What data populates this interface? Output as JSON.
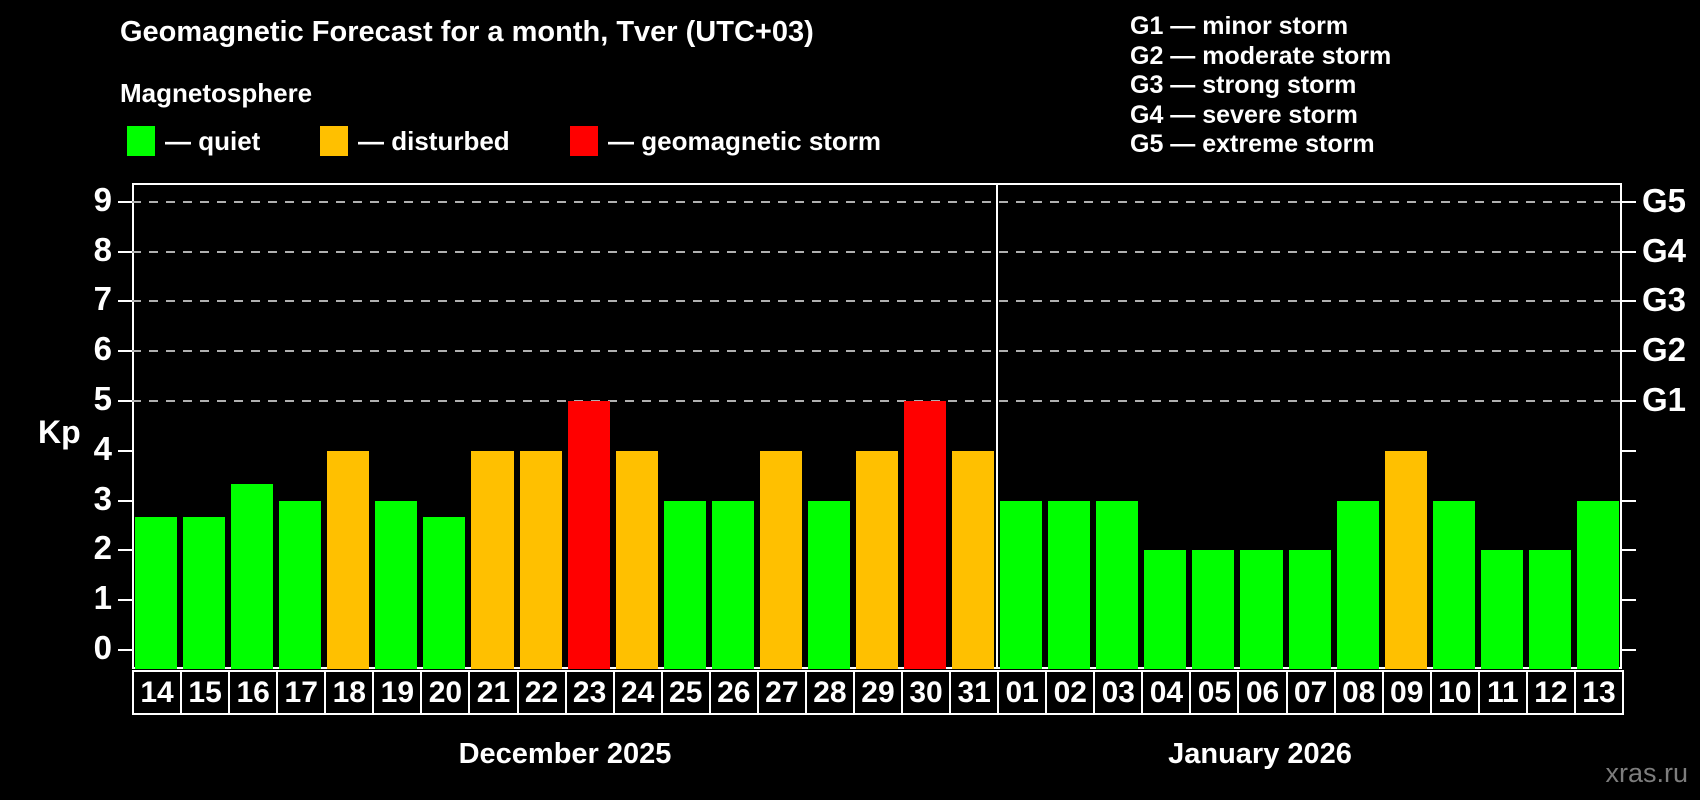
{
  "title": "Geomagnetic Forecast for a month, Tver (UTC+03)",
  "subtitle": "Magnetosphere",
  "legend": {
    "quiet_label": "— quiet",
    "disturbed_label": "— disturbed",
    "storm_label": "— geomagnetic storm"
  },
  "g_scale_legend": [
    "G1 — minor storm",
    "G2 — moderate storm",
    "G3 — strong storm",
    "G4 — severe storm",
    "G5 — extreme storm"
  ],
  "watermark": "xras.ru",
  "colors": {
    "background": "#000000",
    "quiet": "#00ff00",
    "disturbed": "#ffc000",
    "storm": "#ff0000",
    "axis": "#ffffff",
    "grid": "#b0b0b0",
    "watermark_color": "#7d7d7d"
  },
  "chart_data": {
    "type": "bar",
    "title": "Geomagnetic Forecast for a month, Tver (UTC+03)",
    "xlabel": "",
    "ylabel": "Kp",
    "ylim": [
      0,
      9
    ],
    "grid": "horizontal dashed lines at Kp 5,6,7,8,9",
    "legend_position": "top",
    "y_ticks": [
      0,
      1,
      2,
      3,
      4,
      5,
      6,
      7,
      8,
      9
    ],
    "g_labels": {
      "5": "G1",
      "6": "G2",
      "7": "G3",
      "8": "G4",
      "9": "G5"
    },
    "categories": [
      "14",
      "15",
      "16",
      "17",
      "18",
      "19",
      "20",
      "21",
      "22",
      "23",
      "24",
      "25",
      "26",
      "27",
      "28",
      "29",
      "30",
      "31",
      "01",
      "02",
      "03",
      "04",
      "05",
      "06",
      "07",
      "08",
      "09",
      "10",
      "11",
      "12",
      "13"
    ],
    "values": [
      2.67,
      2.67,
      3.33,
      3,
      4,
      3,
      2.67,
      4,
      4,
      5,
      4,
      3,
      3,
      4,
      3,
      4,
      5,
      4,
      3,
      3,
      3,
      2,
      2,
      2,
      2,
      3,
      4,
      3,
      2,
      2,
      3
    ],
    "statuses": [
      "quiet",
      "quiet",
      "quiet",
      "quiet",
      "disturbed",
      "quiet",
      "quiet",
      "disturbed",
      "disturbed",
      "storm",
      "disturbed",
      "quiet",
      "quiet",
      "disturbed",
      "quiet",
      "disturbed",
      "storm",
      "disturbed",
      "quiet",
      "quiet",
      "quiet",
      "quiet",
      "quiet",
      "quiet",
      "quiet",
      "quiet",
      "disturbed",
      "quiet",
      "quiet",
      "quiet",
      "quiet"
    ],
    "months": [
      {
        "label": "December 2025",
        "days": 18
      },
      {
        "label": "January 2026",
        "days": 13
      }
    ]
  }
}
